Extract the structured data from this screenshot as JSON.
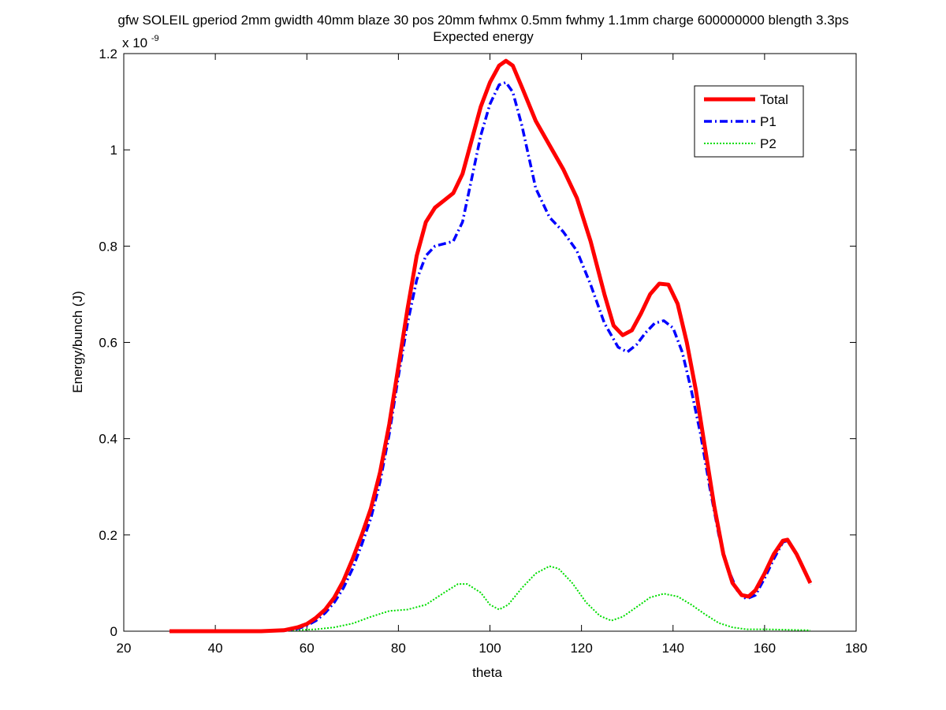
{
  "chart_data": {
    "type": "line",
    "title": "gfw SOLEIL gperiod 2mm gwidth 40mm blaze 30 pos 20mm fwhmx 0.5mm fwhmy 1.1mm charge 600000000 blength 3.3ps",
    "subtitle": "Expected energy",
    "xlabel": "theta",
    "ylabel": "Energy/bunch (J)",
    "y_multiplier_label": "x 10",
    "y_multiplier_exponent": "-9",
    "xlim": [
      20,
      180
    ],
    "ylim": [
      0,
      1.2
    ],
    "x_ticks": [
      20,
      40,
      60,
      80,
      100,
      120,
      140,
      160,
      180
    ],
    "y_ticks": [
      0,
      0.2,
      0.4,
      0.6,
      0.8,
      1,
      1.2
    ],
    "x_tick_labels": [
      "20",
      "40",
      "60",
      "80",
      "100",
      "120",
      "140",
      "160",
      "180"
    ],
    "y_tick_labels": [
      "0",
      "0.2",
      "0.4",
      "0.6",
      "0.8",
      "1",
      "1.2"
    ],
    "grid": false,
    "legend_position": "top-right",
    "series": [
      {
        "name": "Total",
        "color": "#ff0000",
        "style": "solid",
        "points": [
          [
            30,
            0
          ],
          [
            40,
            0
          ],
          [
            50,
            0
          ],
          [
            55,
            0.002
          ],
          [
            58,
            0.008
          ],
          [
            60,
            0.015
          ],
          [
            62,
            0.028
          ],
          [
            64,
            0.045
          ],
          [
            66,
            0.07
          ],
          [
            68,
            0.105
          ],
          [
            70,
            0.15
          ],
          [
            72,
            0.2
          ],
          [
            74,
            0.255
          ],
          [
            76,
            0.33
          ],
          [
            78,
            0.43
          ],
          [
            80,
            0.55
          ],
          [
            82,
            0.67
          ],
          [
            84,
            0.78
          ],
          [
            86,
            0.85
          ],
          [
            88,
            0.88
          ],
          [
            90,
            0.895
          ],
          [
            92,
            0.91
          ],
          [
            94,
            0.95
          ],
          [
            96,
            1.02
          ],
          [
            98,
            1.09
          ],
          [
            100,
            1.14
          ],
          [
            102,
            1.175
          ],
          [
            103.5,
            1.185
          ],
          [
            105,
            1.175
          ],
          [
            107,
            1.13
          ],
          [
            110,
            1.06
          ],
          [
            113,
            1.01
          ],
          [
            116,
            0.96
          ],
          [
            119,
            0.9
          ],
          [
            122,
            0.81
          ],
          [
            125,
            0.7
          ],
          [
            127,
            0.635
          ],
          [
            129,
            0.615
          ],
          [
            131,
            0.625
          ],
          [
            133,
            0.66
          ],
          [
            135,
            0.7
          ],
          [
            137,
            0.722
          ],
          [
            139,
            0.72
          ],
          [
            141,
            0.68
          ],
          [
            143,
            0.6
          ],
          [
            145,
            0.5
          ],
          [
            147,
            0.38
          ],
          [
            149,
            0.26
          ],
          [
            151,
            0.16
          ],
          [
            153,
            0.1
          ],
          [
            155,
            0.075
          ],
          [
            156.5,
            0.072
          ],
          [
            158,
            0.085
          ],
          [
            160,
            0.12
          ],
          [
            162,
            0.16
          ],
          [
            164,
            0.188
          ],
          [
            165,
            0.19
          ],
          [
            167,
            0.16
          ],
          [
            169,
            0.12
          ],
          [
            170,
            0.1
          ]
        ]
      },
      {
        "name": "P1",
        "color": "#0000ff",
        "style": "dashdot",
        "points": [
          [
            30,
            0
          ],
          [
            40,
            0
          ],
          [
            50,
            0
          ],
          [
            55,
            0.001
          ],
          [
            58,
            0.005
          ],
          [
            60,
            0.012
          ],
          [
            62,
            0.022
          ],
          [
            64,
            0.038
          ],
          [
            66,
            0.06
          ],
          [
            68,
            0.09
          ],
          [
            70,
            0.13
          ],
          [
            72,
            0.18
          ],
          [
            74,
            0.235
          ],
          [
            76,
            0.31
          ],
          [
            78,
            0.41
          ],
          [
            80,
            0.53
          ],
          [
            82,
            0.64
          ],
          [
            84,
            0.73
          ],
          [
            86,
            0.78
          ],
          [
            88,
            0.8
          ],
          [
            90,
            0.805
          ],
          [
            92,
            0.81
          ],
          [
            94,
            0.85
          ],
          [
            96,
            0.94
          ],
          [
            98,
            1.03
          ],
          [
            100,
            1.095
          ],
          [
            102,
            1.135
          ],
          [
            103.5,
            1.14
          ],
          [
            105,
            1.12
          ],
          [
            107,
            1.05
          ],
          [
            110,
            0.92
          ],
          [
            113,
            0.86
          ],
          [
            116,
            0.83
          ],
          [
            119,
            0.79
          ],
          [
            122,
            0.72
          ],
          [
            125,
            0.64
          ],
          [
            128,
            0.59
          ],
          [
            130,
            0.58
          ],
          [
            132,
            0.595
          ],
          [
            134,
            0.62
          ],
          [
            136,
            0.64
          ],
          [
            138,
            0.645
          ],
          [
            140,
            0.63
          ],
          [
            142,
            0.58
          ],
          [
            144,
            0.5
          ],
          [
            146,
            0.41
          ],
          [
            148,
            0.3
          ],
          [
            150,
            0.2
          ],
          [
            152,
            0.13
          ],
          [
            154,
            0.085
          ],
          [
            156,
            0.067
          ],
          [
            158,
            0.075
          ],
          [
            160,
            0.11
          ],
          [
            162,
            0.15
          ],
          [
            164,
            0.185
          ],
          [
            165,
            0.188
          ],
          [
            167,
            0.16
          ],
          [
            169,
            0.12
          ],
          [
            170,
            0.097
          ]
        ]
      },
      {
        "name": "P2",
        "color": "#00dd00",
        "style": "dotted",
        "points": [
          [
            30,
            0
          ],
          [
            50,
            0
          ],
          [
            57,
            0.002
          ],
          [
            62,
            0.004
          ],
          [
            66,
            0.008
          ],
          [
            70,
            0.016
          ],
          [
            74,
            0.03
          ],
          [
            78,
            0.042
          ],
          [
            82,
            0.045
          ],
          [
            86,
            0.055
          ],
          [
            90,
            0.08
          ],
          [
            93,
            0.098
          ],
          [
            95,
            0.098
          ],
          [
            98,
            0.08
          ],
          [
            100,
            0.055
          ],
          [
            102,
            0.045
          ],
          [
            104,
            0.055
          ],
          [
            107,
            0.09
          ],
          [
            110,
            0.12
          ],
          [
            113,
            0.135
          ],
          [
            115,
            0.13
          ],
          [
            118,
            0.1
          ],
          [
            121,
            0.06
          ],
          [
            124,
            0.032
          ],
          [
            126.5,
            0.022
          ],
          [
            129,
            0.03
          ],
          [
            132,
            0.05
          ],
          [
            135,
            0.07
          ],
          [
            138,
            0.078
          ],
          [
            141,
            0.072
          ],
          [
            144,
            0.055
          ],
          [
            147,
            0.035
          ],
          [
            150,
            0.017
          ],
          [
            153,
            0.008
          ],
          [
            156,
            0.004
          ],
          [
            160,
            0.004
          ],
          [
            165,
            0.003
          ],
          [
            170,
            0.002
          ]
        ]
      }
    ]
  }
}
